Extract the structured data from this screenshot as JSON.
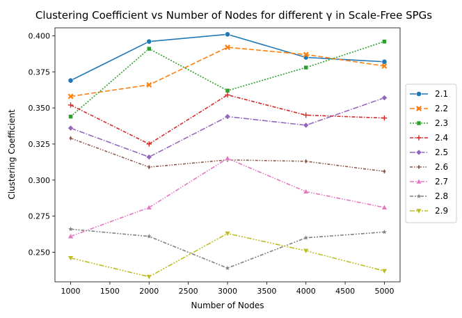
{
  "chart_data": {
    "type": "line",
    "title": "Clustering Coefficient vs Number of Nodes for different γ in Scale-Free SPGs",
    "xlabel": "Number of Nodes",
    "ylabel": "Clustering Coefficient",
    "xlim": [
      800,
      5200
    ],
    "ylim": [
      0.2295,
      0.4055
    ],
    "xticks": [
      1000,
      1500,
      2000,
      2500,
      3000,
      3500,
      4000,
      4500,
      5000
    ],
    "yticks": [
      0.25,
      0.275,
      0.3,
      0.325,
      0.35,
      0.375,
      0.4
    ],
    "ytick_labels": [
      "0.250",
      "0.275",
      "0.300",
      "0.325",
      "0.350",
      "0.375",
      "0.400"
    ],
    "grid": false,
    "legend_position": "right-outside",
    "x": [
      1000,
      2000,
      3000,
      4000,
      5000
    ],
    "series": [
      {
        "name": "2.1",
        "color": "#1f77b4",
        "dash": "",
        "marker": "circle",
        "values": [
          0.369,
          0.396,
          0.401,
          0.385,
          0.382
        ]
      },
      {
        "name": "2.2",
        "color": "#ff7f0e",
        "dash": "7,3",
        "marker": "x",
        "values": [
          0.358,
          0.366,
          0.392,
          0.387,
          0.379
        ]
      },
      {
        "name": "2.3",
        "color": "#2ca02c",
        "dash": "2,2",
        "marker": "square",
        "values": [
          0.344,
          0.391,
          0.362,
          0.378,
          0.396
        ]
      },
      {
        "name": "2.4",
        "color": "#d62728",
        "dash": "5,2,1.5,2",
        "marker": "plus",
        "values": [
          0.352,
          0.325,
          0.359,
          0.345,
          0.343
        ]
      },
      {
        "name": "2.5",
        "color": "#9467bd",
        "dash": "8,2,1.5,2",
        "marker": "diamond",
        "values": [
          0.336,
          0.316,
          0.344,
          0.338,
          0.357
        ]
      },
      {
        "name": "2.6",
        "color": "#8c564b",
        "dash": "4,2,1.5,2,1.5,2",
        "marker": "thin-diamond",
        "values": [
          0.329,
          0.309,
          0.314,
          0.313,
          0.306
        ]
      },
      {
        "name": "2.7",
        "color": "#e377c2",
        "dash": "6,2,1.5,2,1.5,2",
        "marker": "triangle-up",
        "values": [
          0.261,
          0.281,
          0.315,
          0.292,
          0.281
        ]
      },
      {
        "name": "2.8",
        "color": "#7f7f7f",
        "dash": "5,2,2,2,2,2",
        "marker": "star",
        "values": [
          0.266,
          0.261,
          0.239,
          0.26,
          0.264
        ]
      },
      {
        "name": "2.9",
        "color": "#bcbd22",
        "dash": "7,2,2,2,2,2,2,2",
        "marker": "triangle-down",
        "values": [
          0.246,
          0.233,
          0.263,
          0.251,
          0.237
        ]
      }
    ]
  }
}
